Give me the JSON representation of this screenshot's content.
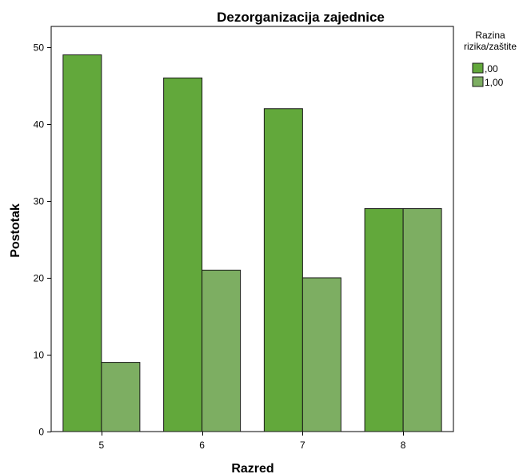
{
  "chart_data": {
    "type": "bar",
    "title": "Dezorganizacija zajednice",
    "xlabel": "Razred",
    "ylabel": "Postotak",
    "categories": [
      "5",
      "6",
      "7",
      "8"
    ],
    "series": [
      {
        "name": ",00",
        "color": "#62A83B",
        "values": [
          49,
          46,
          42,
          29
        ]
      },
      {
        "name": "1,00",
        "color": "#7DAE62",
        "values": [
          9,
          21,
          20,
          29
        ]
      }
    ],
    "ylim": [
      0,
      52.7
    ],
    "yticks": [
      0,
      10,
      20,
      30,
      40,
      50
    ],
    "grid": false,
    "legend": {
      "title_lines": [
        "Razina",
        "rizika/zaštite"
      ],
      "placement": "right"
    }
  }
}
